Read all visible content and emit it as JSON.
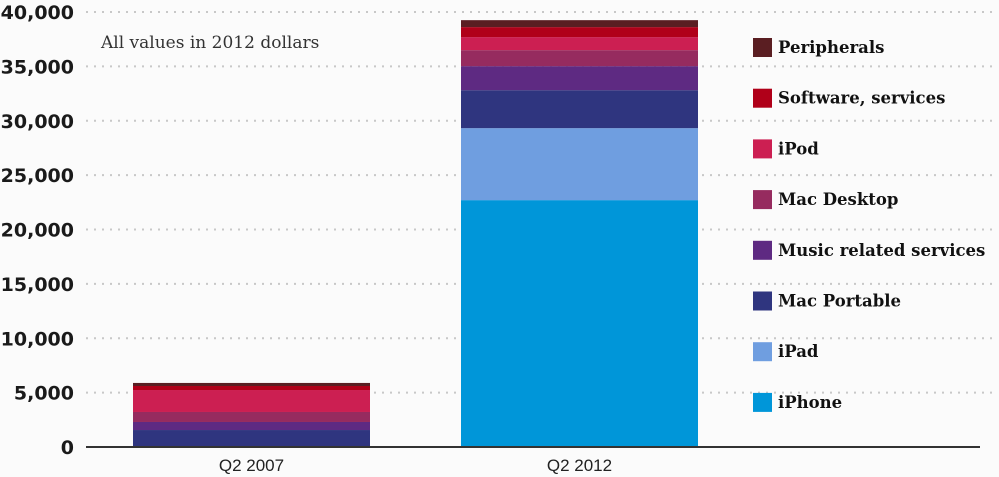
{
  "chart_data": {
    "type": "bar",
    "stacked": true,
    "title": "",
    "annotation": "All values in 2012 dollars",
    "xlabel": "",
    "ylabel": "",
    "ylim": [
      0,
      40000
    ],
    "yticks": [
      0,
      5000,
      10000,
      15000,
      20000,
      25000,
      30000,
      35000,
      40000
    ],
    "ytick_labels": [
      "0",
      "5,000",
      "10,000",
      "15,000",
      "20,000",
      "25,000",
      "30,000",
      "35,000",
      "40,000"
    ],
    "grid": true,
    "legend_position": "right",
    "categories": [
      "Q2 2007",
      "Q2 2012"
    ],
    "series": [
      {
        "name": "iPhone",
        "color": "#0096d9",
        "values": [
          0,
          22700
        ]
      },
      {
        "name": "iPad",
        "color": "#6f9ee0",
        "values": [
          0,
          6620
        ]
      },
      {
        "name": "Mac Portable",
        "color": "#2f357f",
        "values": [
          1560,
          3490
        ]
      },
      {
        "name": "Music related services",
        "color": "#5e2a82",
        "values": [
          740,
          2210
        ]
      },
      {
        "name": "Mac Desktop",
        "color": "#962b5f",
        "values": [
          920,
          1470
        ]
      },
      {
        "name": "iPod",
        "color": "#cc1f52",
        "values": [
          2020,
          1200
        ]
      },
      {
        "name": "Software, services",
        "color": "#b00019",
        "values": [
          370,
          920
        ]
      },
      {
        "name": "Peripherals",
        "color": "#5a1e22",
        "values": [
          280,
          640
        ]
      }
    ],
    "legend_order": [
      "Peripherals",
      "Software, services",
      "iPod",
      "Mac Desktop",
      "Music related services",
      "Mac Portable",
      "iPad",
      "iPhone"
    ]
  }
}
